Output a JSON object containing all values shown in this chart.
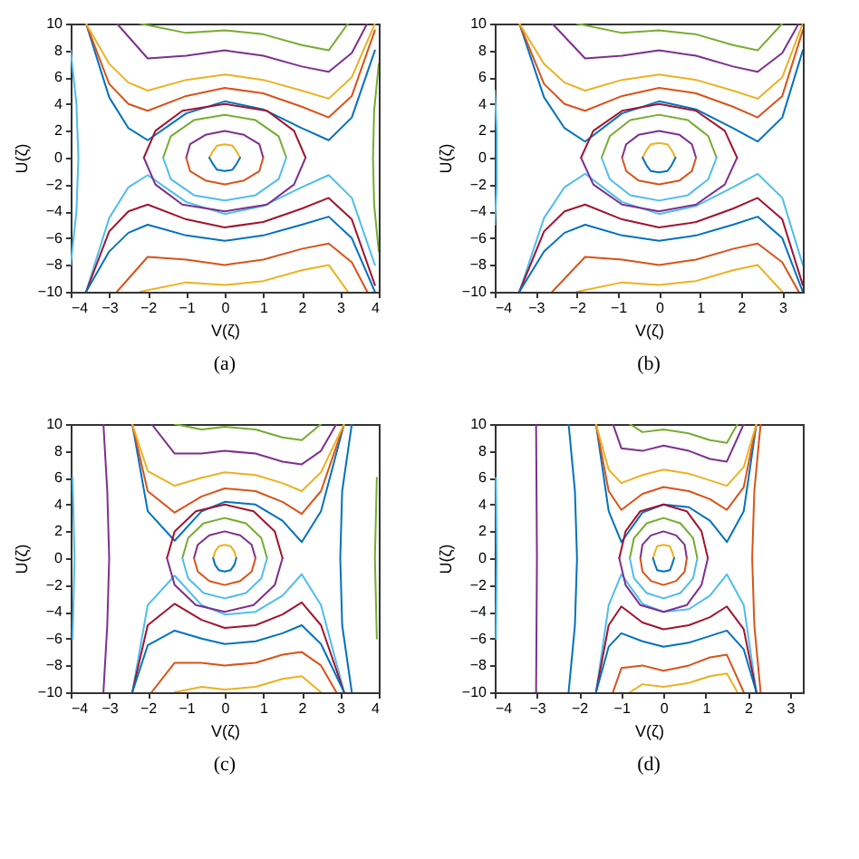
{
  "chart_data": [
    {
      "type": "line",
      "xlabel": "V(ζ)",
      "ylabel": "U(ζ)",
      "annotations": [
        "(a)"
      ],
      "xlim": [
        -4,
        4
      ],
      "xticks": [
        -4,
        -3,
        -2,
        -1,
        0,
        1,
        2,
        3,
        4
      ],
      "ylim": [
        -10,
        10
      ],
      "yticks": [
        -10,
        -8,
        -6,
        -4,
        -2,
        0,
        2,
        4,
        6,
        8,
        10
      ],
      "grid": false,
      "legend": false,
      "series": [
        {
          "color": "#0072bd",
          "x": [
            -3.6,
            -3,
            -2.5,
            -2,
            -1,
            0,
            1,
            2,
            2.7,
            3.3,
            3.9
          ],
          "values": [
            10,
            4.5,
            2.2,
            1.3,
            3.3,
            4.2,
            3.6,
            2.2,
            1.3,
            3,
            8
          ]
        },
        {
          "color": "#d95319",
          "x": [
            -3.6,
            -3,
            -2.5,
            -2,
            -1,
            0,
            1,
            2,
            2.7,
            3.3,
            3.9
          ],
          "values": [
            10,
            5.5,
            4,
            3.5,
            4.6,
            5.2,
            4.8,
            3.8,
            3,
            4.6,
            9.5
          ]
        },
        {
          "color": "#edb120",
          "x": [
            -3.6,
            -3,
            -2.5,
            -2,
            -1,
            0,
            1,
            2,
            2.7,
            3.3,
            3.9
          ],
          "values": [
            10,
            7,
            5.6,
            5,
            5.8,
            6.2,
            5.8,
            5,
            4.4,
            6,
            10
          ]
        },
        {
          "color": "#7e2f8e",
          "x": [
            -2.8,
            -2,
            -1,
            0,
            1,
            2,
            2.7,
            3.3,
            3.7
          ],
          "values": [
            10,
            7.4,
            7.6,
            8,
            7.6,
            6.8,
            6.4,
            7.8,
            10
          ]
        },
        {
          "color": "#77ac30",
          "x": [
            -2.2,
            -1,
            0,
            1,
            2,
            2.7,
            3.2
          ],
          "values": [
            10,
            9.3,
            9.5,
            9.2,
            8.4,
            8,
            10
          ]
        },
        {
          "color": "#4dbeee",
          "x": [
            -3.6,
            -3,
            -2.5,
            -2,
            -1,
            0,
            1,
            2,
            2.7,
            3.3,
            3.9
          ],
          "values": [
            -10,
            -4.5,
            -2.2,
            -1.3,
            -3.3,
            -4.2,
            -3.6,
            -2.2,
            -1.3,
            -3,
            -8
          ]
        },
        {
          "color": "#a2142f",
          "x": [
            -3.6,
            -3,
            -2.5,
            -2,
            -1,
            0,
            1,
            2,
            2.7,
            3.3,
            3.9
          ],
          "values": [
            -10,
            -5.5,
            -4,
            -3.5,
            -4.6,
            -5.2,
            -4.8,
            -3.8,
            -3,
            -4.6,
            -9.5
          ]
        },
        {
          "color": "#0072bd",
          "x": [
            -3.6,
            -3,
            -2.5,
            -2,
            -1,
            0,
            1,
            2,
            2.7,
            3.3,
            3.9
          ],
          "values": [
            -10,
            -7,
            -5.6,
            -5,
            -5.8,
            -6.2,
            -5.8,
            -5,
            -4.4,
            -6,
            -10
          ]
        },
        {
          "color": "#d95319",
          "x": [
            -2.8,
            -2,
            -1,
            0,
            1,
            2,
            2.7,
            3.3,
            3.7
          ],
          "values": [
            -10,
            -7.4,
            -7.6,
            -8,
            -7.6,
            -6.8,
            -6.4,
            -7.8,
            -10
          ]
        },
        {
          "color": "#edb120",
          "x": [
            -2.2,
            -1,
            0,
            1,
            2,
            2.7,
            3.2
          ],
          "values": [
            -10,
            -9.3,
            -9.5,
            -9.2,
            -8.4,
            -8,
            -10
          ]
        },
        {
          "color": "#edb120",
          "x": [
            -0.4,
            -0.3,
            -0.2,
            0,
            0.2,
            0.3,
            0.4
          ],
          "values": [
            0,
            0.5,
            0.9,
            1,
            0.9,
            0.5,
            0
          ]
        },
        {
          "color": "#0072bd",
          "x": [
            -0.4,
            -0.3,
            -0.2,
            0,
            0.2,
            0.3,
            0.4
          ],
          "values": [
            0,
            -0.5,
            -0.9,
            -1,
            -0.9,
            -0.5,
            0
          ]
        },
        {
          "color": "#7e2f8e",
          "x": [
            -1,
            -0.9,
            -0.5,
            0,
            0.5,
            0.9,
            1
          ],
          "values": [
            0,
            1,
            1.7,
            2,
            1.7,
            1,
            0
          ]
        },
        {
          "color": "#d95319",
          "x": [
            -1,
            -0.9,
            -0.5,
            0,
            0.5,
            0.9,
            1
          ],
          "values": [
            0,
            -1,
            -1.7,
            -2,
            -1.7,
            -1,
            0
          ]
        },
        {
          "color": "#77ac30",
          "x": [
            -1.6,
            -1.4,
            -0.8,
            0,
            0.8,
            1.4,
            1.6
          ],
          "values": [
            0,
            1.6,
            2.8,
            3.2,
            2.8,
            1.6,
            0
          ]
        },
        {
          "color": "#4dbeee",
          "x": [
            -1.6,
            -1.4,
            -0.8,
            0,
            0.8,
            1.4,
            1.6
          ],
          "values": [
            0,
            -1.6,
            -2.8,
            -3.2,
            -2.8,
            -1.6,
            0
          ]
        },
        {
          "color": "#a2142f",
          "x": [
            -2.1,
            -1.8,
            -1.1,
            0,
            1.1,
            1.8,
            2.1
          ],
          "values": [
            0,
            2,
            3.5,
            4,
            3.5,
            2,
            0
          ]
        },
        {
          "color": "#7e2f8e",
          "x": [
            -2.1,
            -1.8,
            -1.1,
            0,
            1.1,
            1.8,
            2.1
          ],
          "values": [
            0,
            -2,
            -3.5,
            -4,
            -3.5,
            -2,
            0
          ]
        },
        {
          "color": "#4dbeee",
          "x": [
            -4,
            -3.85,
            -3.8,
            -3.85,
            -4
          ],
          "values": [
            -8,
            -4,
            0,
            4,
            8
          ]
        },
        {
          "color": "#77ac30",
          "x": [
            4,
            3.88,
            3.85,
            3.88,
            4
          ],
          "values": [
            -7,
            -3.5,
            0,
            3.5,
            7
          ]
        }
      ]
    },
    {
      "type": "line",
      "xlabel": "V(ζ)",
      "ylabel": "U(ζ)",
      "annotations": [
        "(b)"
      ],
      "xlim": [
        -4,
        3.5
      ],
      "xticks": [
        -4,
        -3,
        -2,
        -1,
        0,
        1,
        2,
        3
      ],
      "ylim": [
        -10,
        10
      ],
      "yticks": [
        -10,
        -8,
        -6,
        -4,
        -2,
        0,
        2,
        4,
        6,
        8,
        10
      ],
      "grid": false,
      "legend": false,
      "series": [
        {
          "color": "#0072bd",
          "x": [
            -3.4,
            -2.8,
            -2.3,
            -1.8,
            -0.9,
            0,
            0.9,
            1.8,
            2.4,
            3,
            3.5
          ],
          "values": [
            10,
            4.5,
            2.2,
            1.2,
            3.3,
            4.2,
            3.6,
            2.2,
            1.2,
            3,
            8
          ]
        },
        {
          "color": "#d95319",
          "x": [
            -3.4,
            -2.8,
            -2.3,
            -1.8,
            -0.9,
            0,
            0.9,
            1.8,
            2.4,
            3,
            3.5
          ],
          "values": [
            10,
            5.5,
            4,
            3.5,
            4.6,
            5.2,
            4.8,
            3.8,
            3,
            4.6,
            9.5
          ]
        },
        {
          "color": "#edb120",
          "x": [
            -3.4,
            -2.8,
            -2.3,
            -1.8,
            -0.9,
            0,
            0.9,
            1.8,
            2.4,
            3,
            3.5
          ],
          "values": [
            10,
            7,
            5.6,
            5,
            5.8,
            6.2,
            5.8,
            5,
            4.4,
            6,
            10
          ]
        },
        {
          "color": "#7e2f8e",
          "x": [
            -2.6,
            -1.8,
            -0.9,
            0,
            0.9,
            1.8,
            2.4,
            3,
            3.4
          ],
          "values": [
            10,
            7.4,
            7.6,
            8,
            7.6,
            6.8,
            6.4,
            7.8,
            10
          ]
        },
        {
          "color": "#77ac30",
          "x": [
            -2,
            -0.9,
            0,
            0.9,
            1.8,
            2.4,
            3
          ],
          "values": [
            10,
            9.3,
            9.5,
            9.2,
            8.4,
            8,
            10
          ]
        },
        {
          "color": "#4dbeee",
          "x": [
            -3.4,
            -2.8,
            -2.3,
            -1.8,
            -0.9,
            0,
            0.9,
            1.8,
            2.4,
            3,
            3.5
          ],
          "values": [
            -10,
            -4.5,
            -2.2,
            -1.2,
            -3.3,
            -4.2,
            -3.6,
            -2.2,
            -1.2,
            -3,
            -8
          ]
        },
        {
          "color": "#a2142f",
          "x": [
            -3.4,
            -2.8,
            -2.3,
            -1.8,
            -0.9,
            0,
            0.9,
            1.8,
            2.4,
            3,
            3.5
          ],
          "values": [
            -10,
            -5.5,
            -4,
            -3.5,
            -4.6,
            -5.2,
            -4.8,
            -3.8,
            -3,
            -4.6,
            -9.5
          ]
        },
        {
          "color": "#0072bd",
          "x": [
            -3.4,
            -2.8,
            -2.3,
            -1.8,
            -0.9,
            0,
            0.9,
            1.8,
            2.4,
            3,
            3.5
          ],
          "values": [
            -10,
            -7,
            -5.6,
            -5,
            -5.8,
            -6.2,
            -5.8,
            -5,
            -4.4,
            -6,
            -10
          ]
        },
        {
          "color": "#d95319",
          "x": [
            -2.6,
            -1.8,
            -0.9,
            0,
            0.9,
            1.8,
            2.4,
            3,
            3.4
          ],
          "values": [
            -10,
            -7.4,
            -7.6,
            -8,
            -7.6,
            -6.8,
            -6.4,
            -7.8,
            -10
          ]
        },
        {
          "color": "#edb120",
          "x": [
            -2,
            -0.9,
            0,
            0.9,
            1.8,
            2.4,
            3
          ],
          "values": [
            -10,
            -9.3,
            -9.5,
            -9.2,
            -8.4,
            -8,
            -10
          ]
        },
        {
          "color": "#edb120",
          "x": [
            -0.4,
            -0.3,
            -0.2,
            0,
            0.2,
            0.3,
            0.4
          ],
          "values": [
            0,
            0.6,
            1,
            1.1,
            1,
            0.6,
            0
          ]
        },
        {
          "color": "#0072bd",
          "x": [
            -0.4,
            -0.3,
            -0.2,
            0,
            0.2,
            0.3,
            0.4
          ],
          "values": [
            0,
            -0.6,
            -1,
            -1.1,
            -1,
            -0.6,
            0
          ]
        },
        {
          "color": "#7e2f8e",
          "x": [
            -0.9,
            -0.8,
            -0.5,
            0,
            0.5,
            0.8,
            0.9
          ],
          "values": [
            0,
            1,
            1.7,
            2,
            1.7,
            1,
            0
          ]
        },
        {
          "color": "#d95319",
          "x": [
            -0.9,
            -0.8,
            -0.5,
            0,
            0.5,
            0.8,
            0.9
          ],
          "values": [
            0,
            -1,
            -1.7,
            -2,
            -1.7,
            -1,
            0
          ]
        },
        {
          "color": "#77ac30",
          "x": [
            -1.4,
            -1.2,
            -0.7,
            0,
            0.7,
            1.2,
            1.4
          ],
          "values": [
            0,
            1.6,
            2.8,
            3.2,
            2.8,
            1.6,
            0
          ]
        },
        {
          "color": "#4dbeee",
          "x": [
            -1.4,
            -1.2,
            -0.7,
            0,
            0.7,
            1.2,
            1.4
          ],
          "values": [
            0,
            -1.6,
            -2.8,
            -3.2,
            -2.8,
            -1.6,
            0
          ]
        },
        {
          "color": "#a2142f",
          "x": [
            -1.9,
            -1.6,
            -0.9,
            0,
            0.9,
            1.6,
            1.9
          ],
          "values": [
            0,
            2,
            3.5,
            4,
            3.5,
            2,
            0
          ]
        },
        {
          "color": "#7e2f8e",
          "x": [
            -1.9,
            -1.6,
            -0.9,
            0,
            0.9,
            1.6,
            1.9
          ],
          "values": [
            0,
            -2,
            -3.5,
            -4,
            -3.5,
            -2,
            0
          ]
        },
        {
          "color": "#4dbeee",
          "x": [
            -4,
            -3.95,
            -3.95,
            -4
          ],
          "values": [
            -5,
            -2,
            2,
            5
          ]
        }
      ]
    },
    {
      "type": "line",
      "xlabel": "V(ζ)",
      "ylabel": "U(ζ)",
      "annotations": [
        "(c)"
      ],
      "xlim": [
        -4,
        4
      ],
      "xticks": [
        -4,
        -3,
        -2,
        -1,
        0,
        1,
        2,
        3,
        4
      ],
      "ylim": [
        -10,
        10
      ],
      "yticks": [
        -10,
        -8,
        -6,
        -4,
        -2,
        0,
        2,
        4,
        6,
        8,
        10
      ],
      "grid": false,
      "legend": false,
      "series": [
        {
          "color": "#0072bd",
          "x": [
            -2.4,
            -2,
            -1.3,
            -0.6,
            0,
            0.8,
            1.5,
            2,
            2.5,
            3.1
          ],
          "values": [
            10,
            3.5,
            1.3,
            3.5,
            4.2,
            4,
            2.8,
            1.2,
            3.5,
            10
          ]
        },
        {
          "color": "#d95319",
          "x": [
            -2.4,
            -2,
            -1.3,
            -0.6,
            0,
            0.8,
            1.5,
            2,
            2.5,
            3.1
          ],
          "values": [
            10,
            5,
            3.4,
            4.6,
            5.2,
            5,
            4.2,
            3.3,
            5,
            10
          ]
        },
        {
          "color": "#edb120",
          "x": [
            -2.4,
            -2,
            -1.3,
            -0.6,
            0,
            0.8,
            1.5,
            2,
            2.5,
            3.1
          ],
          "values": [
            10,
            6.5,
            5.4,
            6,
            6.4,
            6.2,
            5.6,
            5,
            6.4,
            10
          ]
        },
        {
          "color": "#7e2f8e",
          "x": [
            -1.9,
            -1.3,
            -0.6,
            0,
            0.8,
            1.5,
            2,
            2.5,
            2.9
          ],
          "values": [
            10,
            7.8,
            7.8,
            8,
            7.8,
            7.2,
            7,
            8,
            10
          ]
        },
        {
          "color": "#77ac30",
          "x": [
            -1.3,
            -0.6,
            0,
            0.8,
            1.5,
            2,
            2.5
          ],
          "values": [
            10,
            9.6,
            9.8,
            9.6,
            9,
            8.8,
            10
          ]
        },
        {
          "color": "#4dbeee",
          "x": [
            -2.4,
            -2,
            -1.3,
            -0.6,
            0,
            0.8,
            1.5,
            2,
            2.5,
            3.1
          ],
          "values": [
            -10,
            -3.5,
            -1.3,
            -3.5,
            -4.2,
            -4,
            -2.8,
            -1.2,
            -3.5,
            -10
          ]
        },
        {
          "color": "#a2142f",
          "x": [
            -2.4,
            -2,
            -1.3,
            -0.6,
            0,
            0.8,
            1.5,
            2,
            2.5,
            3.1
          ],
          "values": [
            -10,
            -5,
            -3.4,
            -4.6,
            -5.2,
            -5,
            -4.2,
            -3.3,
            -5,
            -10
          ]
        },
        {
          "color": "#0072bd",
          "x": [
            -2.4,
            -2,
            -1.3,
            -0.6,
            0,
            0.8,
            1.5,
            2,
            2.5,
            3.1
          ],
          "values": [
            -10,
            -6.5,
            -5.4,
            -6,
            -6.4,
            -6.2,
            -5.6,
            -5,
            -6.4,
            -10
          ]
        },
        {
          "color": "#d95319",
          "x": [
            -1.9,
            -1.3,
            -0.6,
            0,
            0.8,
            1.5,
            2,
            2.5,
            2.9
          ],
          "values": [
            -10,
            -7.8,
            -7.8,
            -8,
            -7.8,
            -7.2,
            -7,
            -8,
            -10
          ]
        },
        {
          "color": "#edb120",
          "x": [
            -1.3,
            -0.6,
            0,
            0.8,
            1.5,
            2,
            2.5
          ],
          "values": [
            -10,
            -9.6,
            -9.8,
            -9.6,
            -9,
            -8.8,
            -10
          ]
        },
        {
          "color": "#edb120",
          "x": [
            -0.3,
            -0.25,
            -0.15,
            0,
            0.15,
            0.25,
            0.3
          ],
          "values": [
            0,
            0.5,
            0.9,
            1,
            0.9,
            0.5,
            0
          ]
        },
        {
          "color": "#0072bd",
          "x": [
            -0.3,
            -0.25,
            -0.15,
            0,
            0.15,
            0.25,
            0.3
          ],
          "values": [
            0,
            -0.5,
            -0.9,
            -1,
            -0.9,
            -0.5,
            0
          ]
        },
        {
          "color": "#7e2f8e",
          "x": [
            -0.8,
            -0.7,
            -0.4,
            0,
            0.4,
            0.7,
            0.8
          ],
          "values": [
            0,
            1,
            1.7,
            2,
            1.7,
            1,
            0
          ]
        },
        {
          "color": "#d95319",
          "x": [
            -0.8,
            -0.7,
            -0.4,
            0,
            0.4,
            0.7,
            0.8
          ],
          "values": [
            0,
            -1,
            -1.7,
            -2,
            -1.7,
            -1,
            0
          ]
        },
        {
          "color": "#77ac30",
          "x": [
            -1.1,
            -0.95,
            -0.55,
            0,
            0.55,
            0.95,
            1.1
          ],
          "values": [
            0,
            1.5,
            2.6,
            3,
            2.6,
            1.5,
            0
          ]
        },
        {
          "color": "#4dbeee",
          "x": [
            -1.1,
            -0.95,
            -0.55,
            0,
            0.55,
            0.95,
            1.1
          ],
          "values": [
            0,
            -1.5,
            -2.6,
            -3,
            -2.6,
            -1.5,
            0
          ]
        },
        {
          "color": "#a2142f",
          "x": [
            -1.5,
            -1.3,
            -0.75,
            0,
            0.75,
            1.3,
            1.5
          ],
          "values": [
            0,
            2,
            3.5,
            4,
            3.5,
            2,
            0
          ]
        },
        {
          "color": "#7e2f8e",
          "x": [
            -1.5,
            -1.3,
            -0.75,
            0,
            0.75,
            1.3,
            1.5
          ],
          "values": [
            0,
            -2,
            -3.5,
            -4,
            -3.5,
            -2,
            0
          ]
        },
        {
          "color": "#7e2f8e",
          "x": [
            -3.15,
            -3.05,
            -3,
            -3.05,
            -3.15
          ],
          "values": [
            -10,
            -5,
            0,
            5,
            10
          ]
        },
        {
          "color": "#4dbeee",
          "x": [
            -3.95,
            -3.9,
            -3.95
          ],
          "values": [
            -6,
            0,
            6
          ]
        },
        {
          "color": "#0072bd",
          "x": [
            3.3,
            3.05,
            3,
            3.05,
            3.3
          ],
          "values": [
            -10,
            -5,
            0,
            5,
            10
          ]
        },
        {
          "color": "#77ac30",
          "x": [
            3.95,
            3.9,
            3.95
          ],
          "values": [
            -6,
            0,
            6
          ]
        }
      ]
    },
    {
      "type": "line",
      "xlabel": "V(ζ)",
      "ylabel": "U(ζ)",
      "annotations": [
        "(d)"
      ],
      "xlim": [
        -4,
        3.3
      ],
      "xticks": [
        -4,
        -3,
        -2,
        -1,
        0,
        1,
        2,
        3
      ],
      "ylim": [
        -10,
        10
      ],
      "yticks": [
        -10,
        -8,
        -6,
        -4,
        -2,
        0,
        2,
        4,
        6,
        8,
        10
      ],
      "grid": false,
      "legend": false,
      "series": [
        {
          "color": "#0072bd",
          "x": [
            -1.6,
            -1.3,
            -1,
            -0.5,
            0,
            0.6,
            1.1,
            1.5,
            1.9,
            2.2
          ],
          "values": [
            10,
            3.5,
            1.2,
            3.4,
            4,
            3.8,
            2.8,
            1.2,
            3.5,
            10
          ]
        },
        {
          "color": "#d95319",
          "x": [
            -1.6,
            -1.3,
            -1,
            -0.5,
            0,
            0.6,
            1.1,
            1.5,
            1.9,
            2.2
          ],
          "values": [
            10,
            5,
            3.6,
            4.8,
            5.3,
            5,
            4.4,
            3.6,
            5.3,
            10
          ]
        },
        {
          "color": "#edb120",
          "x": [
            -1.6,
            -1.3,
            -1,
            -0.5,
            0,
            0.6,
            1.1,
            1.5,
            1.9,
            2.2
          ],
          "values": [
            10,
            6.6,
            5.6,
            6.2,
            6.6,
            6.3,
            5.8,
            5.4,
            6.8,
            10
          ]
        },
        {
          "color": "#7e2f8e",
          "x": [
            -1.2,
            -1,
            -0.5,
            0,
            0.6,
            1.1,
            1.5,
            1.9
          ],
          "values": [
            10,
            8.2,
            8,
            8.4,
            8,
            7.4,
            7.2,
            10
          ]
        },
        {
          "color": "#77ac30",
          "x": [
            -0.8,
            -0.5,
            0,
            0.6,
            1.1,
            1.5,
            1.75
          ],
          "values": [
            10,
            9.4,
            9.6,
            9.3,
            8.8,
            8.6,
            10
          ]
        },
        {
          "color": "#4dbeee",
          "x": [
            -1.6,
            -1.3,
            -1,
            -0.5,
            0,
            0.6,
            1.1,
            1.5,
            1.9,
            2.2
          ],
          "values": [
            -10,
            -3.5,
            -1.2,
            -3.4,
            -4,
            -3.8,
            -2.8,
            -1.2,
            -3.5,
            -10
          ]
        },
        {
          "color": "#a2142f",
          "x": [
            -1.6,
            -1.3,
            -1,
            -0.5,
            0,
            0.6,
            1.1,
            1.5,
            1.9,
            2.2
          ],
          "values": [
            -10,
            -5,
            -3.6,
            -4.8,
            -5.3,
            -5,
            -4.4,
            -3.6,
            -5.3,
            -10
          ]
        },
        {
          "color": "#0072bd",
          "x": [
            -1.6,
            -1.3,
            -1,
            -0.5,
            0,
            0.6,
            1.1,
            1.5,
            1.9,
            2.2
          ],
          "values": [
            -10,
            -6.6,
            -5.6,
            -6.2,
            -6.6,
            -6.3,
            -5.8,
            -5.4,
            -6.8,
            -10
          ]
        },
        {
          "color": "#d95319",
          "x": [
            -1.2,
            -1,
            -0.5,
            0,
            0.6,
            1.1,
            1.5,
            1.9
          ],
          "values": [
            -10,
            -8.2,
            -8,
            -8.4,
            -8,
            -7.4,
            -7.2,
            -10
          ]
        },
        {
          "color": "#edb120",
          "x": [
            -0.8,
            -0.5,
            0,
            0.6,
            1.1,
            1.5,
            1.75
          ],
          "values": [
            -10,
            -9.4,
            -9.6,
            -9.3,
            -8.8,
            -8.6,
            -10
          ]
        },
        {
          "color": "#edb120",
          "x": [
            -0.25,
            -0.2,
            -0.15,
            0,
            0.15,
            0.2,
            0.25
          ],
          "values": [
            0,
            0.5,
            0.9,
            1,
            0.9,
            0.5,
            0
          ]
        },
        {
          "color": "#0072bd",
          "x": [
            -0.25,
            -0.2,
            -0.15,
            0,
            0.15,
            0.2,
            0.25
          ],
          "values": [
            0,
            -0.5,
            -0.9,
            -1,
            -0.9,
            -0.5,
            0
          ]
        },
        {
          "color": "#7e2f8e",
          "x": [
            -0.55,
            -0.5,
            -0.3,
            0,
            0.3,
            0.5,
            0.55
          ],
          "values": [
            0,
            1,
            1.7,
            2,
            1.7,
            1,
            0
          ]
        },
        {
          "color": "#d95319",
          "x": [
            -0.55,
            -0.5,
            -0.3,
            0,
            0.3,
            0.5,
            0.55
          ],
          "values": [
            0,
            -1,
            -1.7,
            -2,
            -1.7,
            -1,
            0
          ]
        },
        {
          "color": "#77ac30",
          "x": [
            -0.8,
            -0.7,
            -0.4,
            0,
            0.4,
            0.7,
            0.8
          ],
          "values": [
            0,
            1.5,
            2.6,
            3,
            2.6,
            1.5,
            0
          ]
        },
        {
          "color": "#4dbeee",
          "x": [
            -0.8,
            -0.7,
            -0.4,
            0,
            0.4,
            0.7,
            0.8
          ],
          "values": [
            0,
            -1.5,
            -2.6,
            -3,
            -2.6,
            -1.5,
            0
          ]
        },
        {
          "color": "#a2142f",
          "x": [
            -1.05,
            -0.9,
            -0.55,
            0,
            0.55,
            0.9,
            1.05
          ],
          "values": [
            0,
            2,
            3.5,
            4,
            3.5,
            2,
            0
          ]
        },
        {
          "color": "#7e2f8e",
          "x": [
            -1.05,
            -0.9,
            -0.55,
            0,
            0.55,
            0.9,
            1.05
          ],
          "values": [
            0,
            -2,
            -3.5,
            -4,
            -3.5,
            -2,
            0
          ]
        },
        {
          "color": "#7e2f8e",
          "x": [
            -3.02,
            -3,
            -3.02
          ],
          "values": [
            -10,
            0,
            10
          ]
        },
        {
          "color": "#0072bd",
          "x": [
            -2.25,
            -2.1,
            -2.05,
            -2.1,
            -2.25
          ],
          "values": [
            -10,
            -5,
            0,
            5,
            10
          ]
        },
        {
          "color": "#d95319",
          "x": [
            2.3,
            2.15,
            2.1,
            2.15,
            2.3
          ],
          "values": [
            -10,
            -5,
            0,
            5,
            10
          ]
        },
        {
          "color": "#4dbeee",
          "x": [
            -3.97,
            -3.95,
            -3.97
          ],
          "values": [
            -6,
            0,
            6
          ]
        }
      ]
    }
  ]
}
